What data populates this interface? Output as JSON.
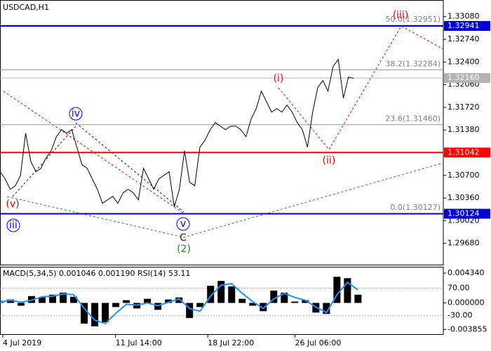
{
  "symbol": "USDCAD,H1",
  "chart_data": [
    {
      "type": "line",
      "color": "#000000",
      "values": [
        1.30754,
        1.30648,
        1.30491,
        1.30543,
        1.30701,
        1.31333,
        1.30912,
        1.30754,
        1.30806,
        1.30964,
        1.3107,
        1.3128,
        1.31385,
        1.31333,
        1.31385,
        1.31122,
        1.30859,
        1.30806,
        1.30648,
        1.30491,
        1.3028,
        1.30333,
        1.30385,
        1.3028,
        1.30438,
        1.30491,
        1.30438,
        1.30333,
        1.30806,
        1.30648,
        1.30491,
        1.30648,
        1.30701,
        1.30754,
        1.30227,
        1.30491,
        1.3107,
        1.30596,
        1.30543,
        1.31122,
        1.31227,
        1.31385,
        1.31491,
        1.31438,
        1.31385,
        1.31438,
        1.31438,
        1.31385,
        1.3128,
        1.31543,
        1.31701,
        1.31964,
        1.31806,
        1.31648,
        1.31701,
        1.31648,
        1.31754,
        1.31648,
        1.31491,
        1.31385,
        1.31122,
        1.31648,
        1.32017,
        1.32122,
        1.31964,
        1.32333,
        1.32438,
        1.31859,
        1.32175,
        1.32154
      ],
      "xlim": [
        0,
        86.5
      ],
      "xticks": [
        {
          "value": 0,
          "label": "4 Jul 2019"
        },
        {
          "value": 22,
          "label": "11 Jul 14:00"
        },
        {
          "value": 40,
          "label": "18 Jul 22:00"
        },
        {
          "value": 57,
          "label": "26 Jul 06:00"
        }
      ],
      "ylim": [
        1.2935,
        1.3333
      ],
      "yticks": [
        {
          "value": 1.3308,
          "label": "1.33080"
        },
        {
          "value": 1.3274,
          "label": "1.32740"
        },
        {
          "value": 1.324,
          "label": "1.32400"
        },
        {
          "value": 1.3206,
          "label": "1.32060"
        },
        {
          "value": 1.3172,
          "label": "1.31720"
        },
        {
          "value": 1.3138,
          "label": "1.31380"
        },
        {
          "value": 1.307,
          "label": "1.30700"
        },
        {
          "value": 1.3036,
          "label": "1.30360"
        },
        {
          "value": 1.3002,
          "label": "1.30020"
        },
        {
          "value": 1.2968,
          "label": "1.29680"
        }
      ],
      "levels": [
        {
          "value": 1.32941,
          "label": "1.32941",
          "color": "#0000cc"
        },
        {
          "value": 1.3216,
          "label": "1.32160",
          "color": "#b4b4b4"
        },
        {
          "value": 1.31042,
          "label": "1.31042",
          "color": "#ff0000"
        },
        {
          "value": 1.30124,
          "label": "1.30124",
          "color": "#0000cc"
        }
      ],
      "fib_levels": [
        {
          "value": 1.32951,
          "label": "50.0(1.32951)"
        },
        {
          "value": 1.32284,
          "label": "38.2(1.32284)"
        },
        {
          "value": 1.3146,
          "label": "23.6(1.31460)"
        },
        {
          "value": 1.30127,
          "label": "0.0(1.30127)"
        }
      ],
      "annotations": [
        "(iii)",
        "(i)",
        "(ii)",
        "iv",
        "(v)",
        "iii",
        "v",
        "C",
        "(2)"
      ]
    },
    {
      "type": "bar",
      "title": "MACD(5,34,5) 0.001046 0.001190 RSI(14) 53.11",
      "xlim": [
        0,
        42.1
      ],
      "series": [
        {
          "color": "#000000",
          "values": [
            0.0003,
            0.0005,
            -0.0004,
            0.001,
            0.0008,
            0.0012,
            0.0015,
            0.0009,
            -0.003,
            -0.0034,
            -0.0028,
            -0.0006,
            0.0004,
            -0.0008,
            0.0006,
            -0.001,
            0.0005,
            0.0008,
            -0.0022,
            -0.0006,
            0.0025,
            0.0032,
            0.0024,
            0.0006,
            -0.0004,
            -0.0012,
            0.0018,
            0.0015,
            0.0002,
            0.0004,
            -0.0014,
            -0.0016,
            0.0038,
            0.0036,
            0.0012
          ]
        },
        {
          "color": "#1e90ff",
          "values": [
            0.0001,
            0.0004,
            0.0001,
            0.0004,
            0.0009,
            0.001,
            0.0013,
            0.0012,
            -0.0008,
            -0.0025,
            -0.003,
            -0.0015,
            -0.0002,
            -0.0003,
            0.0,
            -0.0004,
            0.0001,
            0.0006,
            -0.0008,
            -0.0012,
            0.001,
            0.0026,
            0.0028,
            0.0014,
            0.0002,
            -0.0008,
            0.0006,
            0.0014,
            0.0008,
            0.0004,
            -0.0006,
            -0.0014,
            0.0012,
            0.003,
            0.0019
          ]
        }
      ],
      "ylim": [
        -0.00454,
        0.00516
      ],
      "yticks": [
        {
          "value": 0.00434,
          "label": "0.004340"
        },
        {
          "value": 0,
          "label": "0.000000"
        },
        {
          "value": -0.003855,
          "label": "-0.003855"
        }
      ],
      "y2lim": [
        -96.7,
        144.4
      ],
      "y2ticks": [
        {
          "value": 70,
          "label": "70.00"
        },
        {
          "value": -30,
          "label": "-30.00"
        }
      ]
    }
  ]
}
